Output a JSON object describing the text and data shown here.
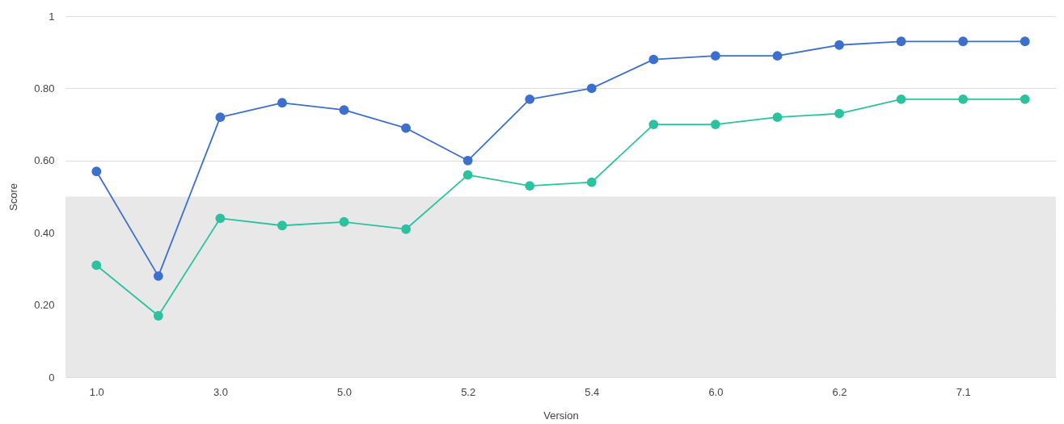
{
  "chart_data": {
    "type": "line",
    "xlabel": "Version",
    "ylabel": "Score",
    "categories": [
      "1.0",
      null,
      "3.0",
      null,
      "5.0",
      null,
      "5.2",
      null,
      "5.4",
      null,
      "6.0",
      null,
      "6.2",
      null,
      "7.1",
      null
    ],
    "series": [
      {
        "color": "#3d6fcc",
        "values": [
          0.57,
          0.28,
          0.72,
          0.76,
          0.74,
          0.69,
          0.6,
          0.77,
          0.8,
          0.88,
          0.89,
          0.89,
          0.92,
          0.93,
          0.93,
          0.93
        ]
      },
      {
        "color": "#2bc29e",
        "values": [
          0.31,
          0.17,
          0.44,
          0.42,
          0.43,
          0.41,
          0.56,
          0.53,
          0.54,
          0.7,
          0.7,
          0.72,
          0.73,
          0.77,
          0.77,
          0.77
        ]
      }
    ],
    "ylim": [
      0,
      1
    ],
    "yticks": [
      0,
      {
        "value": 0.2,
        "label": "0.20"
      },
      {
        "value": 0.4,
        "label": "0.40"
      },
      {
        "value": 0.6,
        "label": "0.60"
      },
      {
        "value": 0.8,
        "label": "0.80"
      },
      1
    ],
    "bands": [
      {
        "axis": "y",
        "from": 0,
        "to": 0.5,
        "color": "#e8e8e8"
      }
    ],
    "grid": "y",
    "marker": "circle",
    "line_style": "solid"
  }
}
